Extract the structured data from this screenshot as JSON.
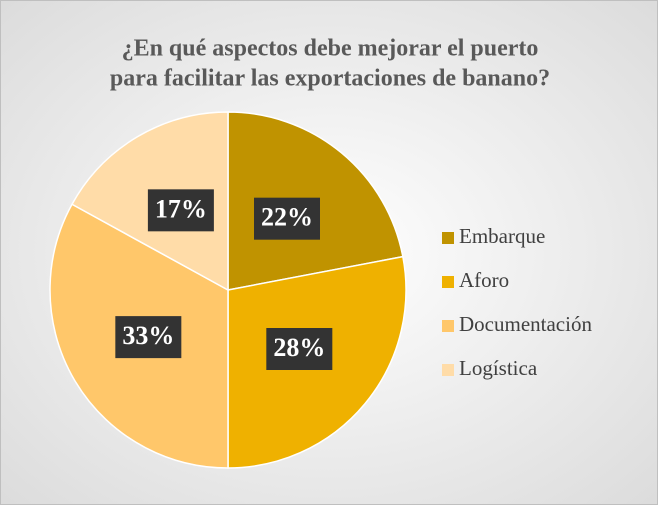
{
  "chart_data": {
    "type": "pie",
    "title": [
      "¿En qué aspectos debe mejorar el puerto",
      "para facilitar las exportaciones de banano?"
    ],
    "categories": [
      "Embarque",
      "Aforo",
      "Documentación",
      "Logística"
    ],
    "values": [
      22,
      28,
      33,
      17
    ],
    "value_labels": [
      "22%",
      "28%",
      "33%",
      "17%"
    ],
    "colors": [
      "#c09300",
      "#efb100",
      "#ffc76a",
      "#ffdca8"
    ],
    "legend": "right"
  }
}
